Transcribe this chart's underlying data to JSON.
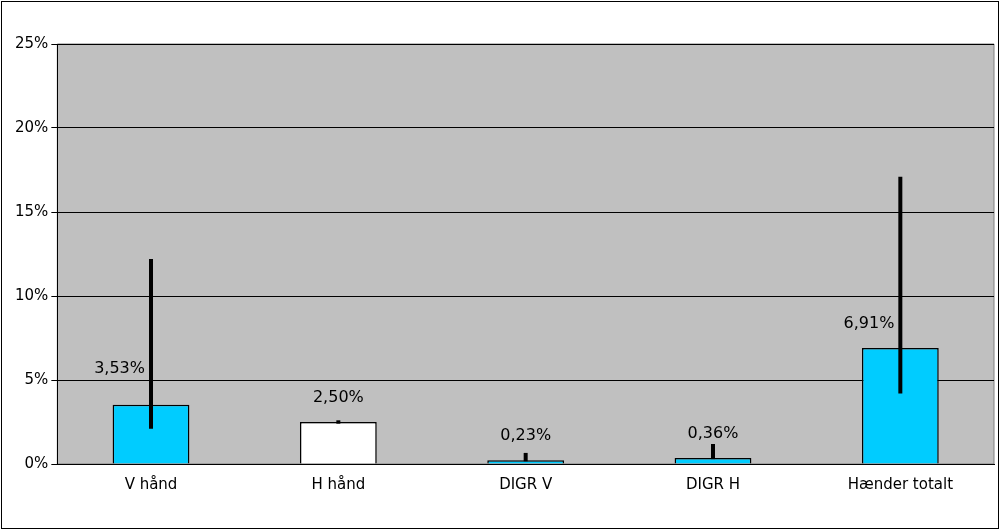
{
  "chart_data": {
    "type": "bar",
    "categories": [
      "V hånd",
      "H hånd",
      "DIGR V",
      "DIGR H",
      "Hænder totalt"
    ],
    "values": [
      3.53,
      2.5,
      0.23,
      0.36,
      6.91
    ],
    "colors": [
      "#00ccff",
      "#ffffff",
      "#00ccff",
      "#00ccff",
      "#00ccff"
    ],
    "errors": [
      [
        2.1,
        12.2
      ],
      [
        2.4,
        2.6
      ],
      [
        0.16,
        0.66
      ],
      [
        0.29,
        1.19
      ],
      [
        4.2,
        17.1
      ]
    ],
    "value_labels": [
      "3,53%",
      "2,50%",
      "0,23%",
      "0,36%",
      "6,91%"
    ],
    "ylim": [
      0,
      25
    ],
    "yticks": [
      {
        "value": 0,
        "label": "0%"
      },
      {
        "value": 5,
        "label": "5%"
      },
      {
        "value": 10,
        "label": "10%"
      },
      {
        "value": 15,
        "label": "15%"
      },
      {
        "value": 20,
        "label": "20%"
      },
      {
        "value": 25,
        "label": "25%"
      }
    ],
    "grid": "y",
    "legend": false
  }
}
